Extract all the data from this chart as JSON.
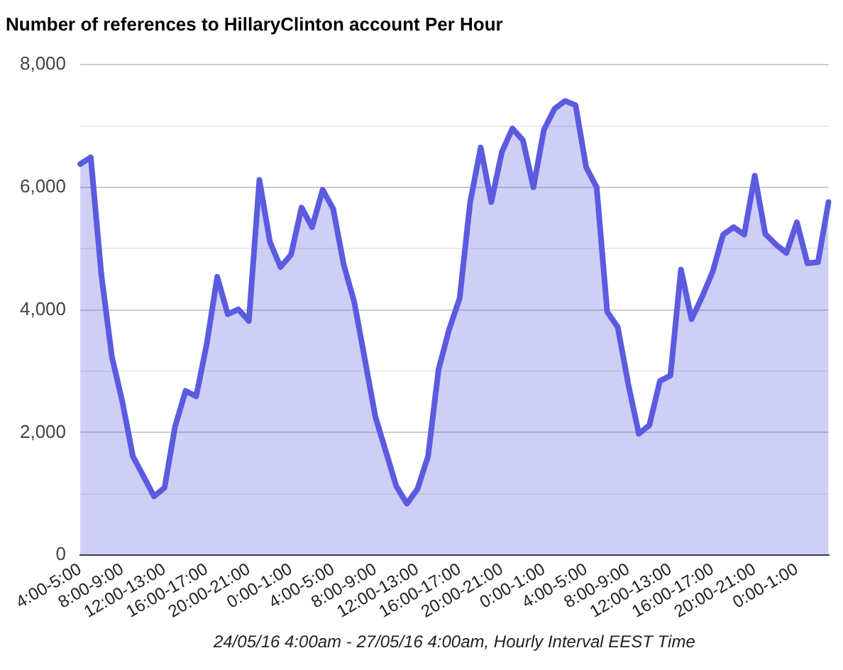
{
  "chart_data": {
    "type": "area",
    "title": "Number of references to HillaryClinton account Per Hour",
    "xlabel": "24/05/16 4:00am - 27/05/16 4:00am, Hourly Interval EEST Time",
    "categories": [
      "4:00-5:00",
      null,
      null,
      null,
      "8:00-9:00",
      null,
      null,
      null,
      "12:00-13:00",
      null,
      null,
      null,
      "16:00-17:00",
      null,
      null,
      null,
      "20:00-21:00",
      null,
      null,
      null,
      "0:00-1:00",
      null,
      null,
      null,
      "4:00-5:00",
      null,
      null,
      null,
      "8:00-9:00",
      null,
      null,
      null,
      "12:00-13:00",
      null,
      null,
      null,
      "16:00-17:00",
      null,
      null,
      null,
      "20:00-21:00",
      null,
      null,
      null,
      "0:00-1:00",
      null,
      null,
      null,
      "4:00-5:00",
      null,
      null,
      null,
      "8:00-9:00",
      null,
      null,
      null,
      "12:00-13:00",
      null,
      null,
      null,
      "16:00-17:00",
      null,
      null,
      null,
      "20:00-21:00",
      null,
      null,
      null,
      "0:00-1:00",
      null,
      null,
      null
    ],
    "series": [
      {
        "color": "#5b5be0",
        "values": [
          6380,
          6490,
          4580,
          3240,
          2500,
          1610,
          1290,
          960,
          1100,
          2100,
          2680,
          2590,
          3440,
          4540,
          3930,
          4010,
          3820,
          6120,
          5110,
          4700,
          4900,
          5670,
          5350,
          5960,
          5650,
          4740,
          4130,
          3200,
          2260,
          1690,
          1120,
          840,
          1080,
          1610,
          3030,
          3680,
          4190,
          5760,
          6650,
          5760,
          6570,
          6960,
          6770,
          6000,
          6940,
          7280,
          7410,
          7340,
          6330,
          6000,
          3970,
          3720,
          2790,
          1980,
          2120,
          2840,
          2930,
          4660,
          3850,
          4210,
          4620,
          5230,
          5350,
          5230,
          6190,
          5240,
          5070,
          4930,
          5430,
          4760,
          4780,
          5760
        ]
      }
    ],
    "ylim": [
      0,
      8000
    ],
    "yticks": [
      0,
      {
        "value": 1000,
        "label": null
      },
      {
        "value": 2000,
        "label": "2,000"
      },
      {
        "value": 3000,
        "label": null
      },
      {
        "value": 4000,
        "label": "4,000"
      },
      {
        "value": 5000,
        "label": null
      },
      {
        "value": 6000,
        "label": "6,000"
      },
      {
        "value": 7000,
        "label": null
      },
      {
        "value": 8000,
        "label": "8,000"
      }
    ],
    "grid": "y",
    "legend": false,
    "marker": "none",
    "line_style": "solid"
  }
}
